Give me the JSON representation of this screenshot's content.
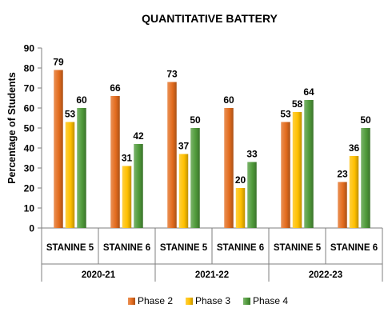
{
  "chart_data": {
    "type": "bar",
    "title": "QUANTITATIVE BATTERY",
    "ylabel": "Percentage of Students",
    "xlabel": "",
    "ylim": [
      0,
      90
    ],
    "ytick_step": 10,
    "grid": false,
    "legend_position": "bottom",
    "groups": [
      {
        "label": "2020-21",
        "categories": [
          "STANINE 5",
          "STANINE 6"
        ]
      },
      {
        "label": "2021-22",
        "categories": [
          "STANINE 5",
          "STANINE 6"
        ]
      },
      {
        "label": "2022-23",
        "categories": [
          "STANINE 5",
          "STANINE 6"
        ]
      }
    ],
    "series": [
      {
        "name": "Phase 2",
        "color": "#E36C1E",
        "values": [
          79,
          66,
          73,
          60,
          53,
          23
        ]
      },
      {
        "name": "Phase 3",
        "color": "#FFC000",
        "values": [
          53,
          31,
          37,
          20,
          58,
          36
        ]
      },
      {
        "name": "Phase 4",
        "color": "#4F9A3A",
        "values": [
          60,
          42,
          50,
          33,
          64,
          50
        ]
      }
    ]
  }
}
